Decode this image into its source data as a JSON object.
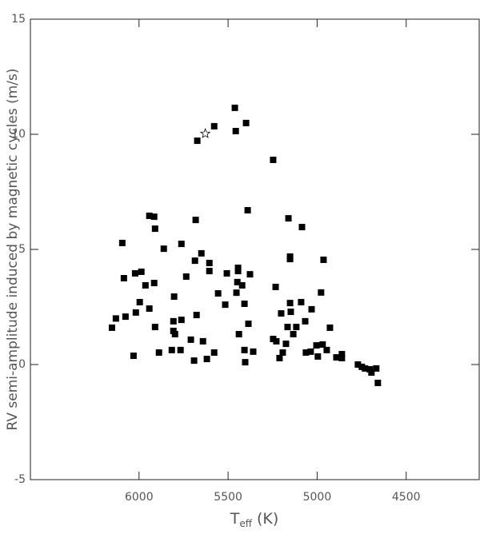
{
  "chart_data": {
    "type": "scatter",
    "ylabel": "RV semi-amplitude induced by magnetic cycles (m/s)",
    "xlabel": {
      "symbol": "T",
      "subscript": "eff",
      "unit": "(K)"
    },
    "xlim": [
      6610,
      4090
    ],
    "ylim": [
      -5,
      15
    ],
    "xticks": [
      6000,
      5500,
      5000,
      4500
    ],
    "yticks": [
      -5,
      0,
      5,
      10,
      15
    ],
    "series": [
      {
        "marker": "square",
        "color": "#000000",
        "x": [
          6152,
          6130,
          6094,
          6085,
          6076,
          6031,
          6022,
          6018,
          5996,
          5987,
          5964,
          5942,
          5942,
          5915,
          5915,
          5910,
          5910,
          5888,
          5861,
          5816,
          5807,
          5807,
          5803,
          5798,
          5767,
          5762,
          5762,
          5735,
          5709,
          5691,
          5686,
          5682,
          5677,
          5673,
          5650,
          5641,
          5619,
          5605,
          5605,
          5578,
          5578,
          5556,
          5516,
          5507,
          5462,
          5457,
          5453,
          5448,
          5444,
          5444,
          5439,
          5421,
          5408,
          5408,
          5404,
          5399,
          5390,
          5386,
          5377,
          5359,
          5247,
          5247,
          5233,
          5229,
          5211,
          5202,
          5193,
          5175,
          5166,
          5161,
          5152,
          5152,
          5152,
          5148,
          5134,
          5117,
          5090,
          5085,
          5067,
          5063,
          5036,
          5031,
          5004,
          4996,
          4978,
          4969,
          4964,
          4946,
          4928,
          4892,
          4861,
          4861,
          4771,
          4749,
          4731,
          4704,
          4695,
          4668,
          4659
        ],
        "values": [
          1.6,
          2.0,
          5.28,
          3.75,
          2.08,
          0.38,
          3.96,
          2.26,
          2.71,
          4.03,
          3.44,
          6.46,
          2.43,
          6.42,
          3.54,
          5.9,
          1.63,
          0.52,
          5.03,
          0.63,
          1.88,
          1.46,
          2.95,
          1.32,
          0.63,
          5.24,
          1.94,
          3.82,
          1.08,
          0.17,
          4.51,
          6.28,
          2.15,
          9.72,
          4.83,
          1.01,
          0.24,
          4.06,
          4.41,
          10.35,
          0.52,
          3.09,
          2.6,
          3.96,
          11.15,
          10.14,
          3.12,
          3.58,
          4.2,
          4.06,
          1.32,
          3.44,
          2.64,
          0.63,
          0.1,
          10.49,
          6.7,
          1.77,
          3.92,
          0.56,
          8.89,
          1.11,
          3.37,
          1.01,
          0.28,
          2.22,
          0.52,
          0.9,
          1.63,
          6.35,
          4.69,
          4.58,
          2.67,
          2.29,
          1.32,
          1.63,
          2.71,
          5.97,
          1.88,
          0.52,
          0.56,
          2.4,
          0.83,
          0.35,
          3.13,
          0.87,
          4.55,
          0.63,
          1.6,
          0.31,
          0.45,
          0.28,
          0.0,
          -0.1,
          -0.17,
          -0.21,
          -0.35,
          -0.17,
          -0.8
        ]
      },
      {
        "marker": "star",
        "color": "#000000",
        "x": [
          5628
        ],
        "values": [
          10.03
        ]
      }
    ]
  }
}
